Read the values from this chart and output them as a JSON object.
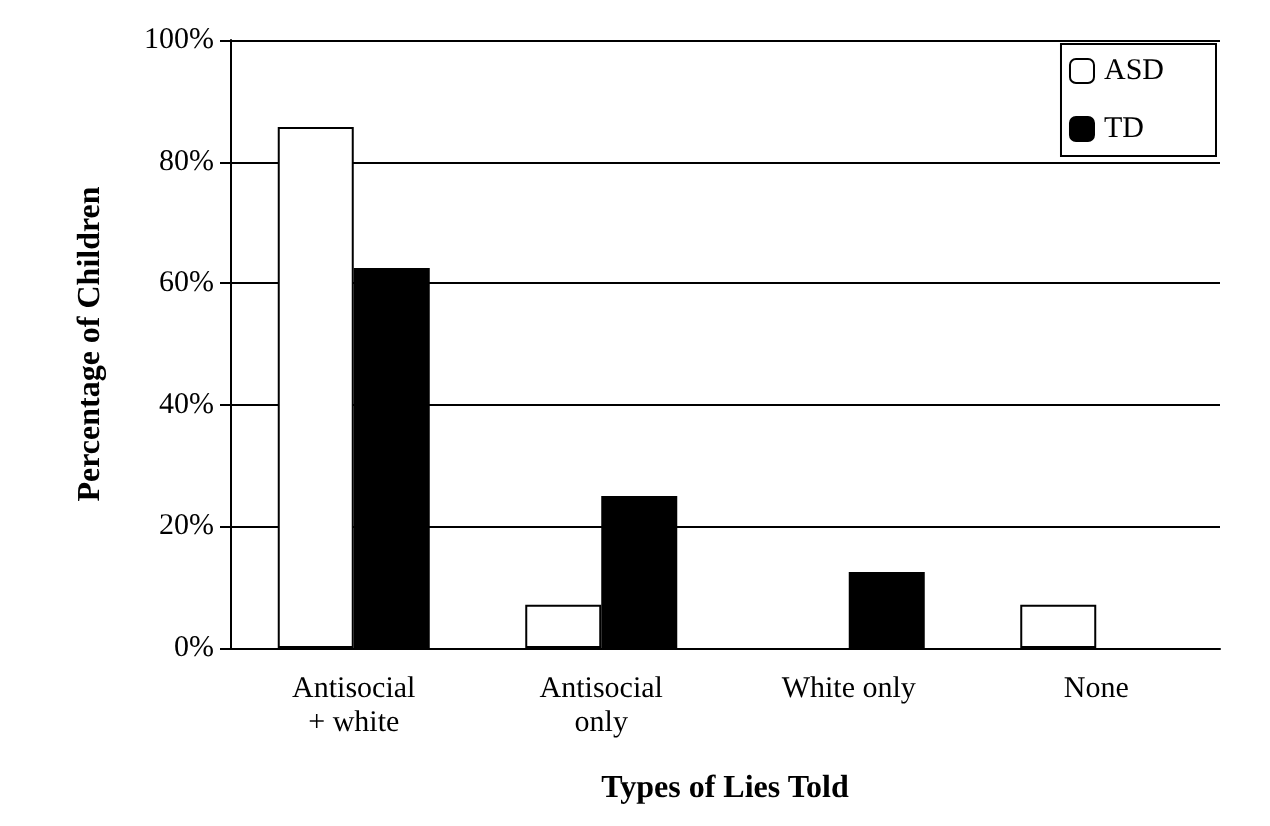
{
  "chart_data": {
    "type": "bar",
    "xlabel": "Types of Lies Told",
    "ylabel": "Percentage of Children",
    "categories": [
      "Antisocial\n+ white",
      "Antisocial\nonly",
      "White only",
      "None"
    ],
    "series": [
      {
        "name": "ASD",
        "color": "#ffffff",
        "values": [
          85.7,
          7.1,
          0,
          7.1
        ]
      },
      {
        "name": "TD",
        "color": "#000000",
        "values": [
          62.5,
          25,
          12.5,
          0
        ]
      }
    ],
    "ylim": [
      0,
      100
    ],
    "yticks": [
      {
        "value": 0,
        "label": "0%"
      },
      {
        "value": 20,
        "label": "20%"
      },
      {
        "value": 40,
        "label": "40%"
      },
      {
        "value": 60,
        "label": "60%"
      },
      {
        "value": 80,
        "label": "80%"
      },
      {
        "value": 100,
        "label": "100%"
      }
    ],
    "grid": "y",
    "legend": "top right"
  }
}
